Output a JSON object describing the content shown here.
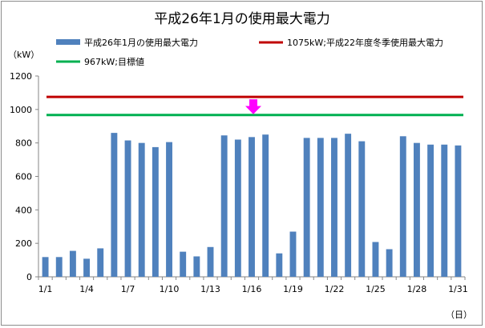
{
  "chart_data": {
    "type": "bar",
    "title": "平成26年1月の使用最大電力",
    "ylabel": "（kW）",
    "xlabel": "（日）",
    "ylim": [
      0,
      1200
    ],
    "yticks": [
      0,
      200,
      400,
      600,
      800,
      1000,
      1200
    ],
    "xtick_labels": [
      "1/1",
      "1/4",
      "1/7",
      "1/10",
      "1/13",
      "1/16",
      "1/19",
      "1/22",
      "1/25",
      "1/28",
      "1/31"
    ],
    "categories": [
      "1/1",
      "1/2",
      "1/3",
      "1/4",
      "1/5",
      "1/6",
      "1/7",
      "1/8",
      "1/9",
      "1/10",
      "1/11",
      "1/12",
      "1/13",
      "1/14",
      "1/15",
      "1/16",
      "1/17",
      "1/18",
      "1/19",
      "1/20",
      "1/21",
      "1/22",
      "1/23",
      "1/24",
      "1/25",
      "1/26",
      "1/27",
      "1/28",
      "1/29",
      "1/30",
      "1/31"
    ],
    "series": [
      {
        "name": "平成26年1月の使用最大電力",
        "color": "#4f81bd",
        "values": [
          118,
          118,
          155,
          108,
          170,
          860,
          815,
          800,
          775,
          805,
          150,
          122,
          178,
          845,
          820,
          835,
          850,
          140,
          270,
          830,
          830,
          830,
          855,
          810,
          208,
          165,
          840,
          800,
          790,
          790,
          785
        ]
      }
    ],
    "reference_lines": [
      {
        "name": "1075kW;平成22年度冬季使用最大電力",
        "value": 1075,
        "color": "#c00000"
      },
      {
        "name": "967kW;目標値",
        "value": 967,
        "color": "#00b050"
      }
    ],
    "annotation_arrow": {
      "color": "#ff00ff",
      "from": 1075,
      "to": 967
    },
    "grid": false,
    "legend": "top"
  }
}
